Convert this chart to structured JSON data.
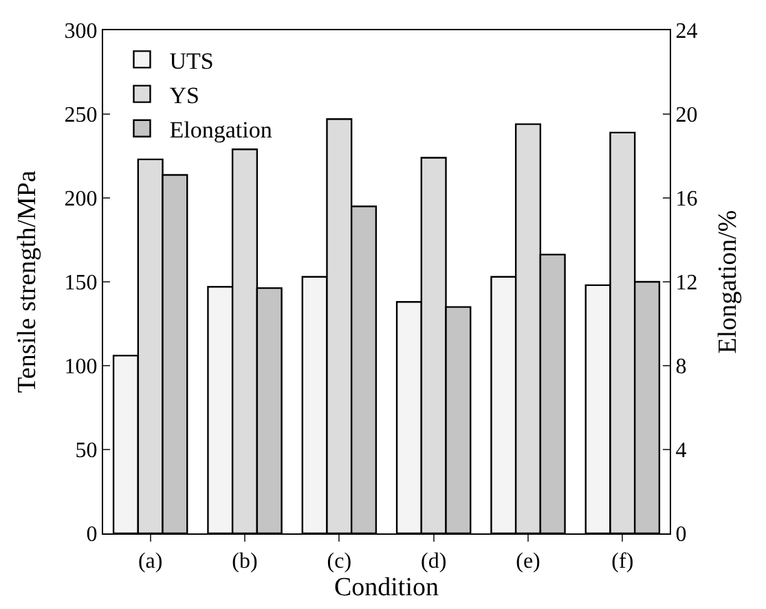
{
  "chart_data": {
    "type": "bar",
    "xlabel": "Condition",
    "ylabel": "Tensile strength/MPa",
    "y2label": "Elongation/%",
    "categories": [
      "(a)",
      "(b)",
      "(c)",
      "(d)",
      "(e)",
      "(f)"
    ],
    "series": [
      {
        "name": "UTS",
        "color": "#f4f4f4",
        "values": [
          106,
          147,
          153,
          138,
          153,
          148
        ]
      },
      {
        "name": "YS",
        "color": "#dcdcdc",
        "values": [
          223,
          229,
          247,
          224,
          244,
          239
        ]
      },
      {
        "name": "Elongation",
        "color": "#c4c4c4",
        "values": [
          17.1,
          11.7,
          15.6,
          10.8,
          13.3,
          12.0
        ],
        "axis": "y2"
      }
    ],
    "ylim": [
      0,
      300
    ],
    "yticks": [
      0,
      50,
      100,
      150,
      200,
      250,
      300
    ],
    "y2lim": [
      0,
      24
    ],
    "y2ticks": [
      0,
      4,
      8,
      12,
      16,
      20,
      24
    ],
    "legend": "top left"
  }
}
